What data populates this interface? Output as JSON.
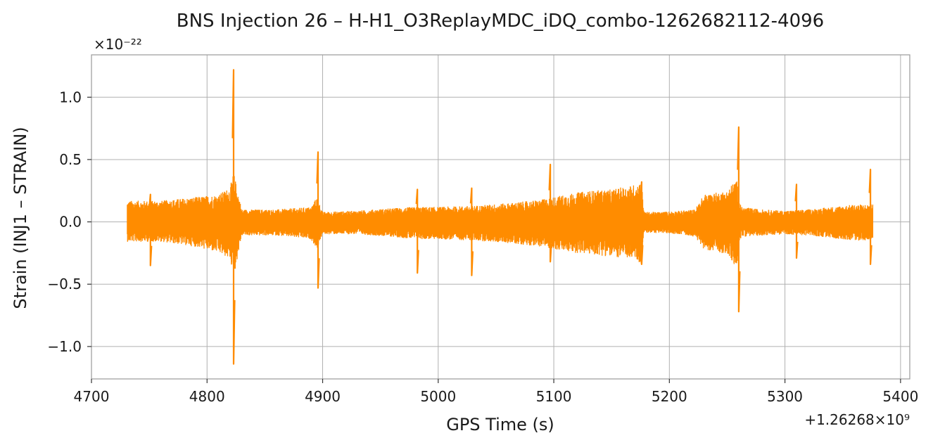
{
  "chart_data": {
    "type": "line",
    "title": "BNS Injection 26 – H-H1_O3ReplayMDC_iDQ_combo-1262682112-4096",
    "xlabel": "GPS Time (s)",
    "ylabel": "Strain (INJ1 – STRAIN)",
    "x_offset_label": "+1.26268×10⁹",
    "y_scale_label": "×10⁻²²",
    "xlim": [
      4700,
      5408
    ],
    "ylim": [
      -1.26,
      1.34
    ],
    "xticks": [
      4700,
      4800,
      4900,
      5000,
      5100,
      5200,
      5300,
      5400
    ],
    "yticks": [
      -1.0,
      -0.5,
      0.0,
      0.5,
      1.0
    ],
    "xtick_labels": [
      "4700",
      "4800",
      "4900",
      "5000",
      "5100",
      "5200",
      "5300",
      "5400"
    ],
    "ytick_labels": [
      "−1.0",
      "−0.5",
      "0.0",
      "0.5",
      "1.0"
    ],
    "grid": true,
    "series": [
      {
        "color": "#ff8c00",
        "x_range": [
          4731,
          5376
        ],
        "envelope": {
          "x": [
            4731,
            4760,
            4790,
            4810,
            4820,
            4823,
            4830,
            4860,
            4890,
            4895,
            4900,
            4930,
            4960,
            4980,
            5000,
            5030,
            5060,
            5090,
            5110,
            5130,
            5150,
            5170,
            5176,
            5178,
            5190,
            5210,
            5222,
            5230,
            5250,
            5258,
            5262,
            5280,
            5300,
            5320,
            5340,
            5360,
            5376
          ],
          "upper": [
            0.17,
            0.17,
            0.2,
            0.22,
            0.28,
            0.4,
            0.1,
            0.1,
            0.12,
            0.2,
            0.08,
            0.09,
            0.11,
            0.12,
            0.12,
            0.13,
            0.15,
            0.18,
            0.22,
            0.25,
            0.26,
            0.3,
            0.32,
            0.08,
            0.08,
            0.09,
            0.1,
            0.22,
            0.25,
            0.35,
            0.12,
            0.1,
            0.09,
            0.1,
            0.12,
            0.14,
            0.14
          ],
          "lower": [
            -0.16,
            -0.16,
            -0.2,
            -0.25,
            -0.3,
            -0.45,
            -0.11,
            -0.11,
            -0.14,
            -0.22,
            -0.1,
            -0.1,
            -0.12,
            -0.14,
            -0.14,
            -0.15,
            -0.17,
            -0.2,
            -0.24,
            -0.26,
            -0.28,
            -0.3,
            -0.34,
            -0.09,
            -0.09,
            -0.1,
            -0.12,
            -0.22,
            -0.26,
            -0.38,
            -0.12,
            -0.11,
            -0.1,
            -0.11,
            -0.13,
            -0.15,
            -0.15
          ]
        },
        "spikes": [
          {
            "x": 4751,
            "min": -0.35,
            "max": 0.22
          },
          {
            "x": 4823,
            "min": -1.14,
            "max": 1.22
          },
          {
            "x": 4896,
            "min": -0.53,
            "max": 0.56
          },
          {
            "x": 4982,
            "min": -0.41,
            "max": 0.26
          },
          {
            "x": 5029,
            "min": -0.43,
            "max": 0.27
          },
          {
            "x": 5097,
            "min": -0.32,
            "max": 0.46
          },
          {
            "x": 5176,
            "min": -0.34,
            "max": 0.32
          },
          {
            "x": 5260,
            "min": -0.72,
            "max": 0.76
          },
          {
            "x": 5310,
            "min": -0.29,
            "max": 0.3
          },
          {
            "x": 5374,
            "min": -0.34,
            "max": 0.42
          }
        ]
      }
    ]
  }
}
